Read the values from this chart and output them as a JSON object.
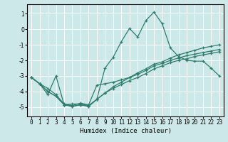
{
  "xlabel": "Humidex (Indice chaleur)",
  "background_color": "#cce8e8",
  "grid_color": "#ffffff",
  "line_color": "#2e7d6e",
  "xlim": [
    -0.5,
    23.5
  ],
  "ylim": [
    -5.6,
    1.6
  ],
  "xticks": [
    0,
    1,
    2,
    3,
    4,
    5,
    6,
    7,
    8,
    9,
    10,
    11,
    12,
    13,
    14,
    15,
    16,
    17,
    18,
    19,
    20,
    21,
    22,
    23
  ],
  "yticks": [
    -5,
    -4,
    -3,
    -2,
    -1,
    0,
    1
  ],
  "line1_y": [
    -3.1,
    -3.5,
    -4.2,
    -3.0,
    -4.85,
    -4.8,
    -4.8,
    -4.9,
    -4.5,
    -2.5,
    -1.8,
    -0.8,
    0.05,
    -0.5,
    0.55,
    1.1,
    0.35,
    -1.2,
    -1.75,
    -2.0,
    -2.05,
    -2.05,
    -2.5,
    -3.0
  ],
  "line2_y": [
    -3.1,
    -3.5,
    -4.0,
    -4.3,
    -4.85,
    -4.95,
    -4.85,
    -4.95,
    -4.5,
    -4.1,
    -3.8,
    -3.55,
    -3.3,
    -3.1,
    -2.85,
    -2.55,
    -2.35,
    -2.15,
    -2.0,
    -1.9,
    -1.75,
    -1.65,
    -1.55,
    -1.45
  ],
  "line3_y": [
    -3.1,
    -3.5,
    -4.0,
    -4.3,
    -4.85,
    -4.95,
    -4.85,
    -4.95,
    -4.5,
    -4.1,
    -3.7,
    -3.4,
    -3.1,
    -2.8,
    -2.55,
    -2.25,
    -2.1,
    -1.85,
    -1.65,
    -1.5,
    -1.35,
    -1.2,
    -1.1,
    -1.0
  ],
  "line4_y": [
    -3.1,
    -3.5,
    -3.8,
    -4.2,
    -4.8,
    -4.9,
    -4.75,
    -4.85,
    -3.6,
    -3.5,
    -3.4,
    -3.25,
    -3.1,
    -2.9,
    -2.65,
    -2.35,
    -2.2,
    -2.0,
    -1.85,
    -1.7,
    -1.6,
    -1.5,
    -1.4,
    -1.3
  ]
}
